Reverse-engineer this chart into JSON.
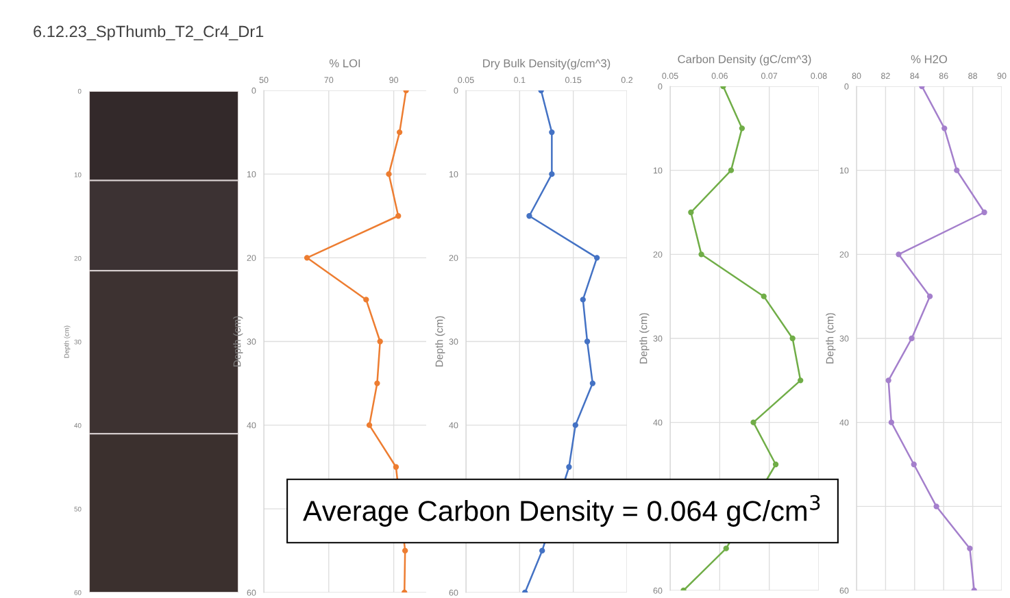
{
  "chart_data": [
    {
      "type": "bar",
      "stacked": true,
      "title": "6.12.23_SpThumb_T2_Cr4_Dr1",
      "ylabel": "Depth (cm)",
      "ylim": [
        60,
        0
      ],
      "yticks": [
        0,
        10,
        20,
        30,
        40,
        50,
        60
      ],
      "tick_labels": "y",
      "categories": [
        null
      ],
      "series": [
        {
          "color": "#33292a",
          "values": [
            10.7
          ]
        },
        {
          "color": "#3c3233",
          "values": [
            10.8
          ]
        },
        {
          "color": "#3d3231",
          "values": [
            19.5
          ]
        },
        {
          "color": "#3b302e",
          "values": [
            19.0
          ]
        }
      ]
    },
    {
      "type": "line",
      "xlabel": "% LOI",
      "ylabel": "Depth (cm)",
      "xlim": [
        50,
        100
      ],
      "xticks": [
        50,
        70,
        90
      ],
      "ylim": [
        60,
        0
      ],
      "yticks": [
        0,
        10,
        20,
        30,
        40,
        {
          "value": 50,
          "label": null
        },
        60
      ],
      "grid": true,
      "marker": "circle",
      "line_style": "solid",
      "series": [
        {
          "color": "#ed7d31",
          "x": [
            93.8,
            91.8,
            88.5,
            91.4,
            63.3,
            81.5,
            85.8,
            84.9,
            82.5,
            90.7,
            93.5,
            93.3
          ],
          "values": [
            0,
            5,
            10,
            15,
            20,
            25,
            30,
            35,
            40,
            45,
            55,
            60
          ]
        }
      ]
    },
    {
      "type": "line",
      "xlabel": "Dry Bulk Density(g/cm^3)",
      "ylabel": "Depth (cm)",
      "xlim": [
        0.05,
        0.2
      ],
      "xticks": [
        0.05,
        0.1,
        0.15,
        0.2
      ],
      "ylim": [
        60,
        0
      ],
      "yticks": [
        0,
        10,
        20,
        30,
        40,
        60
      ],
      "grid": true,
      "marker": "circle",
      "line_style": "solid",
      "series": [
        {
          "color": "#4472c4",
          "x": [
            0.12,
            0.13,
            0.13,
            0.109,
            0.172,
            0.159,
            0.163,
            0.168,
            0.152,
            0.146,
            0.121,
            0.105
          ],
          "values": [
            0,
            5,
            10,
            15,
            20,
            25,
            30,
            35,
            40,
            45,
            55,
            60
          ]
        }
      ]
    },
    {
      "type": "line",
      "xlabel": "Carbon Density (gC/cm^3)",
      "ylabel": "Depth (cm)",
      "xlim": [
        0.05,
        0.08
      ],
      "xticks": [
        0.05,
        0.06,
        0.07,
        0.08
      ],
      "ylim": [
        60,
        0
      ],
      "yticks": [
        0,
        10,
        20,
        30,
        40,
        60
      ],
      "grid": true,
      "marker": "circle",
      "line_style": "solid",
      "series": [
        {
          "color": "#70ad47",
          "x": [
            0.0607,
            0.0645,
            0.0623,
            0.0542,
            0.0563,
            0.0689,
            0.0747,
            0.0763,
            0.0668,
            0.0713,
            0.0613,
            0.0527
          ],
          "values": [
            0,
            5,
            10,
            15,
            20,
            25,
            30,
            35,
            40,
            45,
            55,
            60
          ]
        }
      ],
      "annotations": [
        "Average Carbon Density = 0.064 gC/cm$^{3}$"
      ]
    },
    {
      "type": "line",
      "xlabel": "% H2O",
      "ylabel": "Depth (cm)",
      "xlim": [
        80,
        90
      ],
      "xticks": [
        80,
        82,
        84,
        86,
        88,
        90
      ],
      "ylim": [
        60,
        0
      ],
      "yticks": [
        0,
        10,
        20,
        30,
        40,
        {
          "value": 50,
          "label": null
        },
        60
      ],
      "grid": true,
      "marker": "circle",
      "line_style": "solid",
      "series": [
        {
          "color": "#a47fcc",
          "x": [
            84.5,
            86.05,
            86.9,
            88.8,
            82.9,
            85.05,
            83.8,
            82.2,
            82.4,
            83.95,
            85.5,
            87.8,
            88.1
          ],
          "values": [
            0,
            5,
            10,
            15,
            20,
            25,
            30,
            35,
            40,
            45,
            50,
            55,
            60
          ]
        }
      ]
    }
  ]
}
